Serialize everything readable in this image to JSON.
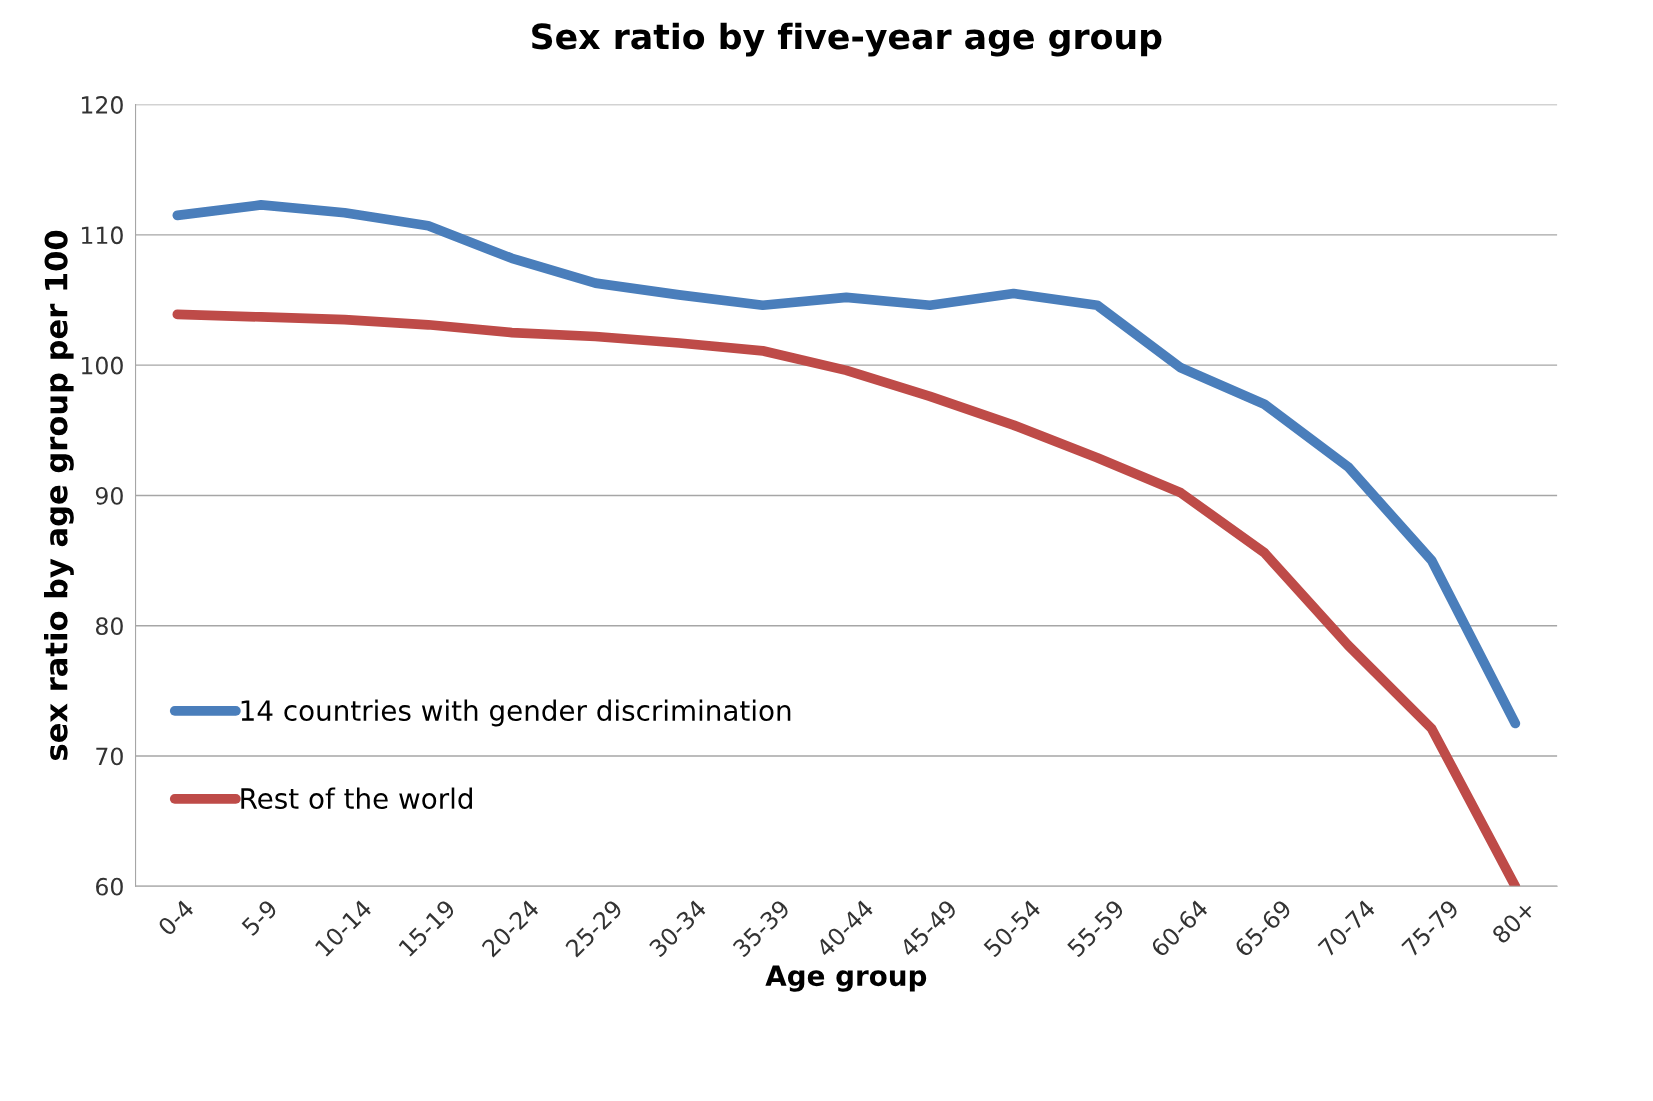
{
  "chart_data": {
    "type": "line",
    "title": "Sex ratio by five-year age group",
    "xlabel": "Age group",
    "ylabel": "sex ratio by age group per 100",
    "categories": [
      "0-4",
      "5-9",
      "10-14",
      "15-19",
      "20-24",
      "25-29",
      "30-34",
      "35-39",
      "40-44",
      "45-49",
      "50-54",
      "55-59",
      "60-64",
      "65-69",
      "70-74",
      "75-79",
      "80+"
    ],
    "series": [
      {
        "name": "14 countries with gender discrimination",
        "color": "#4a7ebb",
        "values": [
          111.5,
          112.3,
          111.7,
          110.7,
          108.2,
          106.3,
          105.4,
          104.6,
          105.2,
          104.6,
          105.5,
          104.6,
          99.8,
          97.0,
          92.2,
          85.0,
          72.5
        ]
      },
      {
        "name": "Rest of the world",
        "color": "#be4b48",
        "values": [
          103.9,
          103.7,
          103.5,
          103.1,
          102.5,
          102.2,
          101.7,
          101.1,
          99.6,
          97.6,
          95.4,
          92.9,
          90.2,
          85.6,
          78.5,
          72.1,
          60
        ]
      }
    ],
    "ylim": [
      60,
      120
    ],
    "yticks": [
      60,
      70,
      80,
      90,
      100,
      110,
      120
    ],
    "grid": "y",
    "legend": "bottom left",
    "marker": "none",
    "line_style": "solid"
  }
}
